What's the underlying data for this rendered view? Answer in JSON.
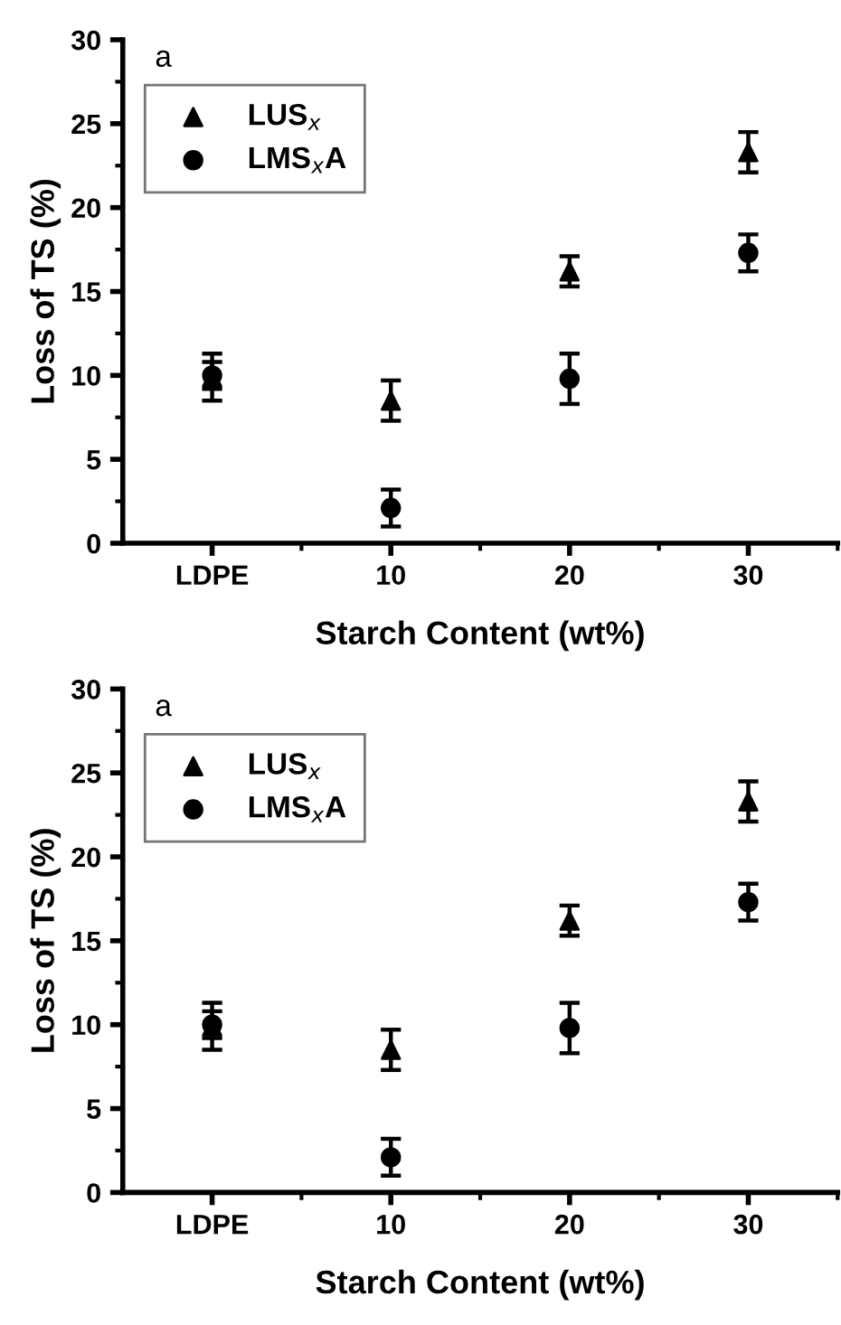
{
  "chart_data": [
    {
      "type": "scatter",
      "xlabel": "Starch Content (wt%)",
      "ylabel": "Loss of TS (%)",
      "categories": [
        "LDPE",
        "10",
        "20",
        "30"
      ],
      "ylim": [
        0,
        30
      ],
      "yticks": [
        0,
        5,
        10,
        15,
        20,
        25,
        30
      ],
      "annotations": [
        "a"
      ],
      "legend": "top left",
      "grid": false,
      "series": [
        {
          "name": "LUS$_{x}$",
          "color": "#000000",
          "marker": "triangle",
          "values": [
            9.9,
            8.5,
            16.2,
            23.3
          ],
          "errors": [
            1.4,
            1.2,
            0.9,
            1.2
          ]
        },
        {
          "name": "LMS$_{x}$A",
          "color": "#000000",
          "marker": "circle",
          "values": [
            10.0,
            2.1,
            9.8,
            17.3
          ],
          "errors": [
            0.8,
            1.1,
            1.5,
            1.1
          ]
        }
      ]
    },
    {
      "type": "scatter",
      "xlabel": "Starch Content (wt%)",
      "ylabel": "Loss of TS (%)",
      "categories": [
        "LDPE",
        "10",
        "20",
        "30"
      ],
      "ylim": [
        0,
        30
      ],
      "yticks": [
        0,
        5,
        10,
        15,
        20,
        25,
        30
      ],
      "annotations": [
        "a"
      ],
      "legend": "top left",
      "grid": false,
      "series": [
        {
          "name": "LUS$_{x}$",
          "color": "#000000",
          "marker": "triangle",
          "values": [
            9.9,
            8.5,
            16.2,
            23.3
          ],
          "errors": [
            1.4,
            1.2,
            0.9,
            1.2
          ]
        },
        {
          "name": "LMS$_{x}$A",
          "color": "#000000",
          "marker": "circle",
          "values": [
            10.0,
            2.1,
            9.8,
            17.3
          ],
          "errors": [
            0.8,
            1.1,
            1.5,
            1.1
          ]
        }
      ]
    }
  ]
}
